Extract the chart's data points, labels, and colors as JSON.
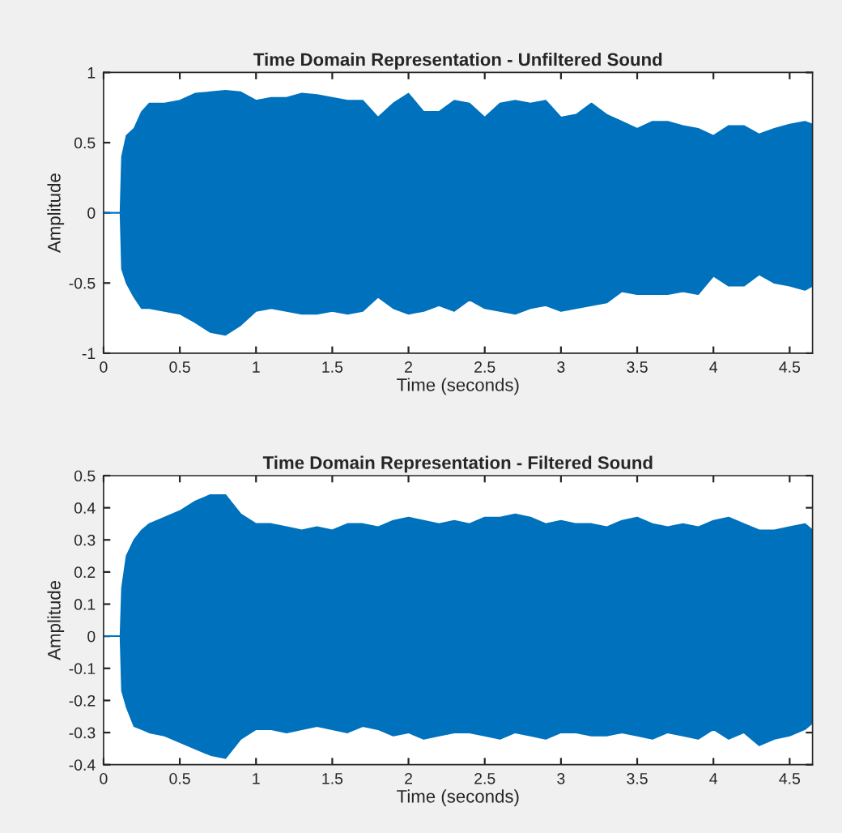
{
  "chart_data": [
    {
      "type": "area",
      "title": "Time Domain Representation - Unfiltered Sound",
      "xlabel": "Time (seconds)",
      "ylabel": "Amplitude",
      "x": [
        0,
        0.11,
        0.12,
        0.15,
        0.2,
        0.25,
        0.3,
        0.4,
        0.5,
        0.6,
        0.7,
        0.8,
        0.9,
        1.0,
        1.1,
        1.2,
        1.3,
        1.4,
        1.5,
        1.6,
        1.7,
        1.8,
        1.9,
        2.0,
        2.1,
        2.2,
        2.3,
        2.4,
        2.5,
        2.6,
        2.7,
        2.8,
        2.9,
        3.0,
        3.1,
        3.2,
        3.3,
        3.4,
        3.5,
        3.6,
        3.7,
        3.8,
        3.9,
        4.0,
        4.1,
        4.2,
        4.3,
        4.4,
        4.5,
        4.6,
        4.65
      ],
      "series": [
        {
          "color": "#0072bd",
          "values": [
            0,
            0,
            0.4,
            0.55,
            0.6,
            0.72,
            0.78,
            0.78,
            0.8,
            0.85,
            0.86,
            0.87,
            0.86,
            0.8,
            0.82,
            0.82,
            0.85,
            0.84,
            0.82,
            0.8,
            0.8,
            0.68,
            0.78,
            0.85,
            0.72,
            0.72,
            0.8,
            0.78,
            0.68,
            0.78,
            0.8,
            0.78,
            0.8,
            0.68,
            0.7,
            0.78,
            0.7,
            0.65,
            0.6,
            0.65,
            0.65,
            0.62,
            0.6,
            0.55,
            0.62,
            0.62,
            0.56,
            0.6,
            0.63,
            0.65,
            0.63
          ]
        },
        {
          "color": "#0072bd",
          "values": [
            0,
            0,
            -0.4,
            -0.5,
            -0.6,
            -0.68,
            -0.68,
            -0.7,
            -0.72,
            -0.78,
            -0.85,
            -0.87,
            -0.8,
            -0.7,
            -0.68,
            -0.7,
            -0.72,
            -0.72,
            -0.7,
            -0.72,
            -0.7,
            -0.6,
            -0.68,
            -0.72,
            -0.7,
            -0.66,
            -0.7,
            -0.62,
            -0.68,
            -0.7,
            -0.72,
            -0.68,
            -0.66,
            -0.7,
            -0.68,
            -0.66,
            -0.64,
            -0.56,
            -0.58,
            -0.58,
            -0.58,
            -0.56,
            -0.58,
            -0.45,
            -0.52,
            -0.52,
            -0.44,
            -0.5,
            -0.52,
            -0.55,
            -0.52
          ]
        }
      ],
      "xlim": [
        0,
        4.65
      ],
      "xticks": [
        0,
        0.5,
        1,
        1.5,
        2,
        2.5,
        3,
        3.5,
        4,
        4.5
      ],
      "ylim": [
        -1,
        1
      ],
      "yticks": [
        -1,
        -0.5,
        0,
        0.5,
        1
      ],
      "grid": false,
      "legend": false
    },
    {
      "type": "area",
      "title": "Time Domain Representation - Filtered Sound",
      "xlabel": "Time (seconds)",
      "ylabel": "Amplitude",
      "x": [
        0,
        0.11,
        0.12,
        0.15,
        0.2,
        0.25,
        0.3,
        0.4,
        0.5,
        0.6,
        0.7,
        0.8,
        0.9,
        1.0,
        1.1,
        1.2,
        1.3,
        1.4,
        1.5,
        1.6,
        1.7,
        1.8,
        1.9,
        2.0,
        2.1,
        2.2,
        2.3,
        2.4,
        2.5,
        2.6,
        2.7,
        2.8,
        2.9,
        3.0,
        3.1,
        3.2,
        3.3,
        3.4,
        3.5,
        3.6,
        3.7,
        3.8,
        3.9,
        4.0,
        4.1,
        4.2,
        4.3,
        4.4,
        4.5,
        4.6,
        4.65
      ],
      "series": [
        {
          "color": "#0072bd",
          "values": [
            0,
            0,
            0.15,
            0.25,
            0.3,
            0.33,
            0.35,
            0.37,
            0.39,
            0.42,
            0.44,
            0.44,
            0.38,
            0.35,
            0.35,
            0.34,
            0.33,
            0.34,
            0.33,
            0.35,
            0.35,
            0.34,
            0.36,
            0.37,
            0.36,
            0.35,
            0.36,
            0.35,
            0.37,
            0.37,
            0.38,
            0.37,
            0.35,
            0.36,
            0.35,
            0.35,
            0.34,
            0.36,
            0.37,
            0.35,
            0.34,
            0.35,
            0.34,
            0.36,
            0.37,
            0.35,
            0.33,
            0.33,
            0.34,
            0.35,
            0.33
          ]
        },
        {
          "color": "#0072bd",
          "values": [
            0,
            0,
            -0.17,
            -0.22,
            -0.28,
            -0.29,
            -0.3,
            -0.31,
            -0.33,
            -0.35,
            -0.37,
            -0.38,
            -0.32,
            -0.29,
            -0.29,
            -0.3,
            -0.29,
            -0.28,
            -0.29,
            -0.3,
            -0.28,
            -0.29,
            -0.31,
            -0.3,
            -0.32,
            -0.31,
            -0.3,
            -0.3,
            -0.31,
            -0.32,
            -0.3,
            -0.31,
            -0.32,
            -0.3,
            -0.3,
            -0.31,
            -0.31,
            -0.3,
            -0.31,
            -0.32,
            -0.3,
            -0.31,
            -0.32,
            -0.29,
            -0.32,
            -0.3,
            -0.34,
            -0.32,
            -0.31,
            -0.29,
            -0.27
          ]
        }
      ],
      "xlim": [
        0,
        4.65
      ],
      "xticks": [
        0,
        0.5,
        1,
        1.5,
        2,
        2.5,
        3,
        3.5,
        4,
        4.5
      ],
      "ylim": [
        -0.4,
        0.5
      ],
      "yticks": [
        -0.4,
        -0.3,
        -0.2,
        -0.1,
        0,
        0.1,
        0.2,
        0.3,
        0.4,
        0.5
      ],
      "grid": false,
      "legend": false
    }
  ]
}
